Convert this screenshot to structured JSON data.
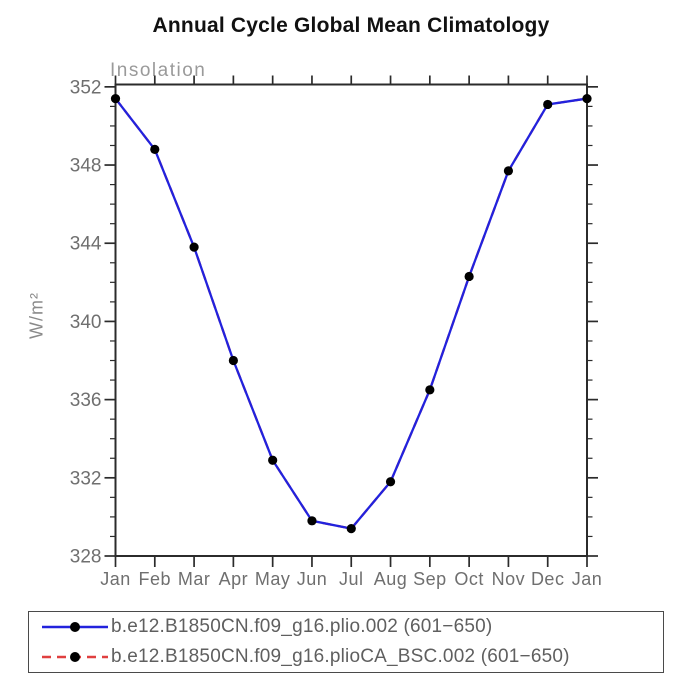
{
  "title": "Annual Cycle Global Mean Climatology",
  "subtitle": "Insolation",
  "ylabel": "W/m²",
  "colors": {
    "series1_blue": "#2222dd",
    "series2_red": "#e04040",
    "marker_black": "#000000",
    "axis": "#2b2b2b",
    "tick_label_gray": "#6f6f6f",
    "subtitle_gray": "#9a9a9a"
  },
  "chart_data": {
    "type": "line",
    "title": "Annual Cycle Global Mean Climatology",
    "subtitle": "Insolation",
    "xlabel": "",
    "ylabel": "W/m²",
    "categories": [
      "Jan",
      "Feb",
      "Mar",
      "Apr",
      "May",
      "Jun",
      "Jul",
      "Aug",
      "Sep",
      "Oct",
      "Nov",
      "Dec",
      "Jan"
    ],
    "series": [
      {
        "name": "b.e12.B1850CN.f09_g16.plio.002 (601−650)",
        "color": "#2222dd",
        "line_style": "solid",
        "marker": "filled-circle",
        "marker_color": "#000000",
        "values": [
          351.4,
          348.8,
          343.8,
          338.0,
          332.9,
          329.8,
          329.4,
          331.8,
          336.5,
          342.3,
          347.7,
          351.1,
          351.4
        ]
      },
      {
        "name": "b.e12.B1850CN.f09_g16.plioCA_BSC.002 (601−650)",
        "color": "#e04040",
        "line_style": "dashed",
        "marker": "filled-circle",
        "marker_color": "#000000",
        "values": [
          351.4,
          348.8,
          343.8,
          338.0,
          332.9,
          329.8,
          329.4,
          331.8,
          336.5,
          342.3,
          347.7,
          351.1,
          351.4
        ],
        "note_visibility": "overlaps series 1, hidden beneath blue line"
      }
    ],
    "ylim": [
      328,
      352.12
    ],
    "yticks_major": [
      328,
      332,
      336,
      340,
      344,
      348,
      352
    ],
    "ytick_minor_step": 1,
    "grid": false,
    "legend_position": "bottom"
  },
  "legend": {
    "entries": [
      {
        "label": "b.e12.B1850CN.f09_g16.plio.002 (601−650)",
        "color": "#2222dd",
        "dash": "0"
      },
      {
        "label": "b.e12.B1850CN.f09_g16.plioCA_BSC.002 (601−650)",
        "color": "#e04040",
        "dash": "9,6"
      }
    ]
  }
}
